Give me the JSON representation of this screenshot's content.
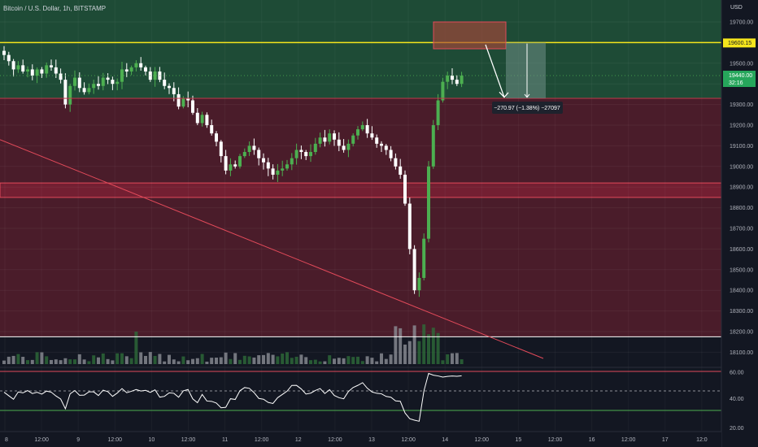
{
  "header": {
    "symbol": "Bitcoin / U.S. Dollar, 1h, BITSTAMP",
    "currency": "USD"
  },
  "colors": {
    "background": "#131722",
    "up": "#4caf50",
    "down": "#ffffff",
    "resistance_line": "#f5e51c",
    "support_line": "#ffffff",
    "green_zone": "#1e4b36",
    "red_zone": "#4a1c2a",
    "trendline": "#e24a5a"
  },
  "price_axis": {
    "ticks": [
      "19700.00",
      "19600.00",
      "19500.00",
      "19400.00",
      "19300.00",
      "19200.00",
      "19100.00",
      "19000.00",
      "18900.00",
      "18800.00",
      "18700.00",
      "18600.00",
      "18500.00",
      "18400.00",
      "18300.00",
      "18200.00",
      "18100.00"
    ],
    "resistance_label": "19600.15",
    "last_price_label": "19440.00",
    "countdown_label": "32:16"
  },
  "rsi_axis": {
    "ticks": [
      "60.00",
      "40.00",
      "20.00"
    ]
  },
  "time_axis": {
    "ticks": [
      "8",
      "12:00",
      "9",
      "12:00",
      "10",
      "12:00",
      "11",
      "12:00",
      "12",
      "12:00",
      "13",
      "12:00",
      "14",
      "12:00",
      "15",
      "12:00",
      "16",
      "12:00",
      "17",
      "12:0"
    ]
  },
  "measure": {
    "label": "−270.97 (−1.38%) −27097"
  },
  "chart_data": {
    "type": "candlestick",
    "title": "Bitcoin / U.S. Dollar, 1h, BITSTAMP",
    "ylim": [
      18050,
      19790
    ],
    "levels": {
      "resistance": 19600.15,
      "support": 18175,
      "green_zone": [
        19330,
        19790
      ],
      "red_zone": [
        18175,
        19330
      ],
      "red_band": [
        18850,
        18920
      ]
    },
    "trendline": {
      "from_price": 19130,
      "to_price": 18070
    },
    "projection": {
      "entry_zone": [
        19570,
        19700
      ],
      "target_zone": [
        19330,
        19600
      ],
      "change": -270.97,
      "change_pct": -1.38
    },
    "hourly_close": [
      19540,
      19510,
      19470,
      19490,
      19460,
      19470,
      19440,
      19470,
      19450,
      19490,
      19480,
      19450,
      19420,
      19300,
      19390,
      19430,
      19380,
      19360,
      19380,
      19400,
      19390,
      19430,
      19420,
      19400,
      19410,
      19470,
      19460,
      19480,
      19500,
      19480,
      19460,
      19420,
      19460,
      19420,
      19390,
      19380,
      19350,
      19290,
      19330,
      19320,
      19260,
      19210,
      19250,
      19200,
      19160,
      19120,
      19050,
      18980,
      19010,
      19000,
      19050,
      19070,
      19100,
      19080,
      19040,
      19020,
      18990,
      18960,
      18980,
      18990,
      19010,
      19040,
      19080,
      19070,
      19050,
      19070,
      19110,
      19140,
      19120,
      19160,
      19130,
      19100,
      19080,
      19110,
      19150,
      19180,
      19200,
      19160,
      19140,
      19110,
      19100,
      19080,
      19040,
      19000,
      18960,
      18820,
      18600,
      18400,
      18460,
      18650,
      19000,
      19200,
      19320,
      19410,
      19440,
      19420,
      19400,
      19440
    ]
  }
}
